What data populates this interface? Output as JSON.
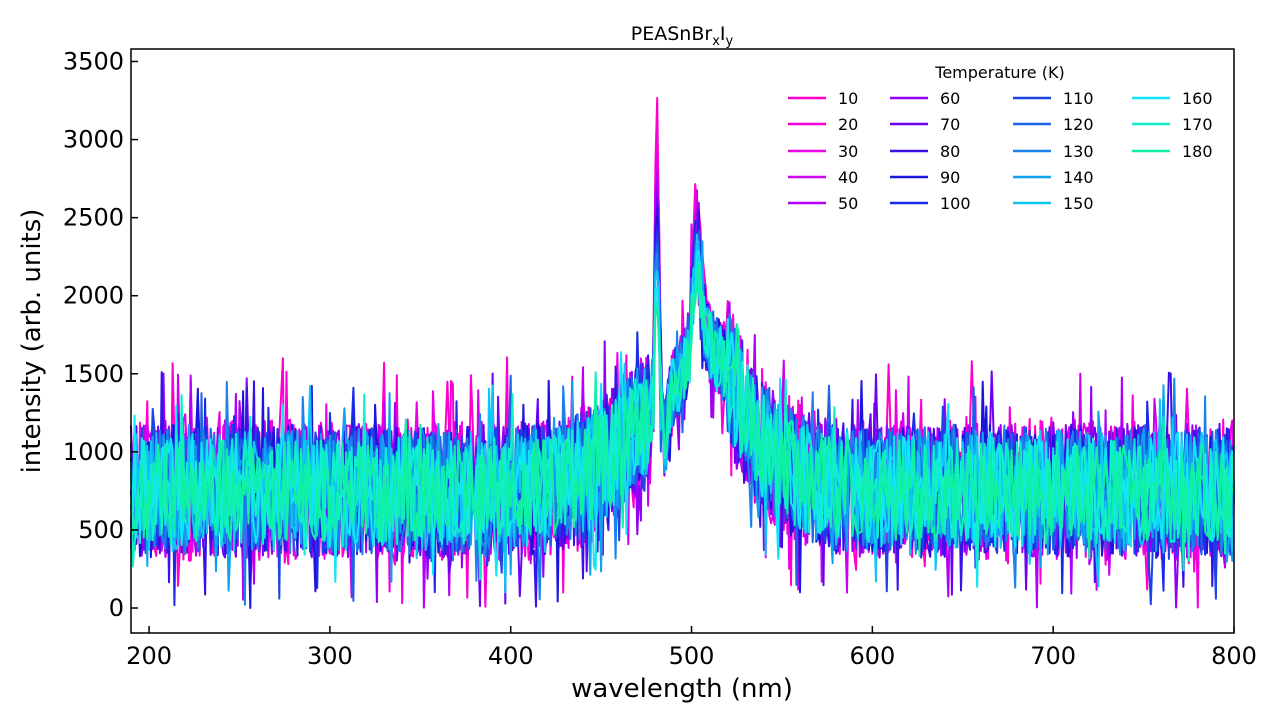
{
  "chart_data": {
    "type": "line",
    "title": "PEASnBr",
    "title_sub1": "x",
    "title_mid": "I",
    "title_sub2": "y",
    "xlabel": "wavelength (nm)",
    "ylabel": "intensity (arb. units)",
    "xlim": [
      190,
      800
    ],
    "ylim": [
      -160,
      3580
    ],
    "x_ticks": [
      200,
      300,
      400,
      500,
      600,
      700,
      800
    ],
    "y_ticks": [
      0,
      500,
      1000,
      1500,
      2000,
      2500,
      3000,
      3500
    ],
    "grid": false,
    "legend": {
      "title": "Temperature (K)",
      "placement": "top-right",
      "columns": 4
    },
    "series": [
      {
        "name": "10",
        "color": "#ff00cc",
        "peak": 3380,
        "shoulder": 2610,
        "noise": 1.1
      },
      {
        "name": "20",
        "color": "#f500d8",
        "peak": 3200,
        "shoulder": 2550,
        "noise": 1.05
      },
      {
        "name": "30",
        "color": "#ea00e6",
        "peak": 3050,
        "shoulder": 2500,
        "noise": 1.05
      },
      {
        "name": "40",
        "color": "#cc00f0",
        "peak": 2950,
        "shoulder": 2480,
        "noise": 1.0
      },
      {
        "name": "50",
        "color": "#b000f5",
        "peak": 2900,
        "shoulder": 2460,
        "noise": 1.0
      },
      {
        "name": "60",
        "color": "#9200f5",
        "peak": 2850,
        "shoulder": 2440,
        "noise": 1.0
      },
      {
        "name": "70",
        "color": "#6c00f0",
        "peak": 2800,
        "shoulder": 2420,
        "noise": 1.0
      },
      {
        "name": "80",
        "color": "#3a10e6",
        "peak": 2750,
        "shoulder": 2400,
        "noise": 1.0
      },
      {
        "name": "90",
        "color": "#1a14dc",
        "peak": 2700,
        "shoulder": 2380,
        "noise": 1.0
      },
      {
        "name": "100",
        "color": "#1a2ae6",
        "peak": 2650,
        "shoulder": 2360,
        "noise": 0.95
      },
      {
        "name": "110",
        "color": "#1a44e6",
        "peak": 2600,
        "shoulder": 2340,
        "noise": 0.95
      },
      {
        "name": "120",
        "color": "#1a62e8",
        "peak": 2550,
        "shoulder": 2320,
        "noise": 0.95
      },
      {
        "name": "130",
        "color": "#1a82ec",
        "peak": 2500,
        "shoulder": 2300,
        "noise": 0.95
      },
      {
        "name": "140",
        "color": "#10a2f0",
        "peak": 2450,
        "shoulder": 2280,
        "noise": 0.9
      },
      {
        "name": "150",
        "color": "#10c6f4",
        "peak": 2400,
        "shoulder": 2260,
        "noise": 0.9
      },
      {
        "name": "160",
        "color": "#10e6f6",
        "peak": 2300,
        "shoulder": 2240,
        "noise": 0.85
      },
      {
        "name": "170",
        "color": "#10f0c6",
        "peak": 2200,
        "shoulder": 2220,
        "noise": 0.8
      },
      {
        "name": "180",
        "color": "#10f0a2",
        "peak": 2150,
        "shoulder": 2200,
        "noise": 0.75
      }
    ]
  }
}
